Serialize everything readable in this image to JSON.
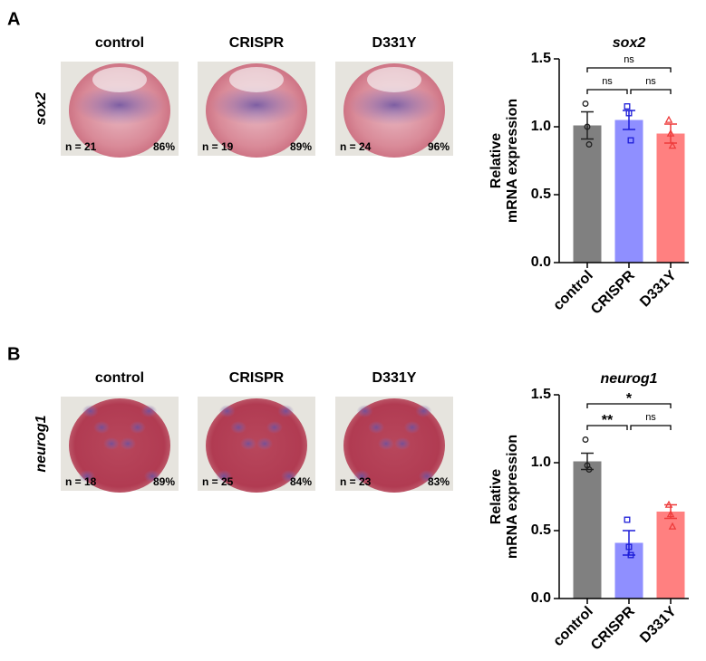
{
  "panels": [
    {
      "label": "A",
      "gene": "sox2",
      "images": [
        {
          "title": "control",
          "n": "n = 21",
          "pct": "86%"
        },
        {
          "title": "CRISPR",
          "n": "n = 19",
          "pct": "89%"
        },
        {
          "title": "D331Y",
          "n": "n = 24",
          "pct": "96%"
        }
      ]
    },
    {
      "label": "B",
      "gene": "neurog1",
      "images": [
        {
          "title": "control",
          "n": "n = 18",
          "pct": "89%"
        },
        {
          "title": "CRISPR",
          "n": "n = 25",
          "pct": "84%"
        },
        {
          "title": "D331Y",
          "n": "n = 23",
          "pct": "83%"
        }
      ]
    }
  ],
  "chart_data": [
    {
      "type": "bar",
      "title": "sox2",
      "ylabel": [
        "Relative",
        "mRNA expression"
      ],
      "categories": [
        "control",
        "CRISPR",
        "D331Y"
      ],
      "values": [
        1.01,
        1.05,
        0.95
      ],
      "errors": [
        0.1,
        0.07,
        0.07
      ],
      "points": [
        [
          1.17,
          1.0,
          0.87
        ],
        [
          1.15,
          1.1,
          0.9
        ],
        [
          1.05,
          0.95,
          0.86
        ]
      ],
      "colors": [
        "#808080",
        "#8f8fff",
        "#ff8080"
      ],
      "point_colors": [
        "#222222",
        "#1c1cd8",
        "#ee3b3b"
      ],
      "markers": [
        "circle",
        "square",
        "triangle"
      ],
      "ylim": [
        0,
        1.5
      ],
      "yticks": [
        {
          "value": 0,
          "label": "0.0"
        },
        {
          "value": 0.5,
          "label": "0.5"
        },
        {
          "value": 1,
          "label": "1.0"
        },
        {
          "value": 1.5,
          "label": "1.5"
        }
      ],
      "significance": [
        {
          "from": 0,
          "to": 1,
          "label": "ns"
        },
        {
          "from": 1,
          "to": 2,
          "label": "ns"
        },
        {
          "from": 0,
          "to": 2,
          "label": "ns"
        }
      ]
    },
    {
      "type": "bar",
      "title": "neurog1",
      "ylabel": [
        "Relative",
        "mRNA expression"
      ],
      "categories": [
        "control",
        "CRISPR",
        "D331Y"
      ],
      "values": [
        1.01,
        0.41,
        0.64
      ],
      "errors": [
        0.06,
        0.09,
        0.05
      ],
      "points": [
        [
          1.17,
          0.98,
          0.95
        ],
        [
          0.58,
          0.38,
          0.32
        ],
        [
          0.69,
          0.62,
          0.53
        ]
      ],
      "colors": [
        "#808080",
        "#8f8fff",
        "#ff8080"
      ],
      "point_colors": [
        "#222222",
        "#1c1cd8",
        "#ee3b3b"
      ],
      "markers": [
        "circle",
        "square",
        "triangle"
      ],
      "ylim": [
        0,
        1.5
      ],
      "yticks": [
        {
          "value": 0,
          "label": "0.0"
        },
        {
          "value": 0.5,
          "label": "0.5"
        },
        {
          "value": 1,
          "label": "1.0"
        },
        {
          "value": 1.5,
          "label": "1.5"
        }
      ],
      "significance": [
        {
          "from": 0,
          "to": 1,
          "label": "**"
        },
        {
          "from": 1,
          "to": 2,
          "label": "ns"
        },
        {
          "from": 0,
          "to": 2,
          "label": "*"
        }
      ]
    }
  ]
}
